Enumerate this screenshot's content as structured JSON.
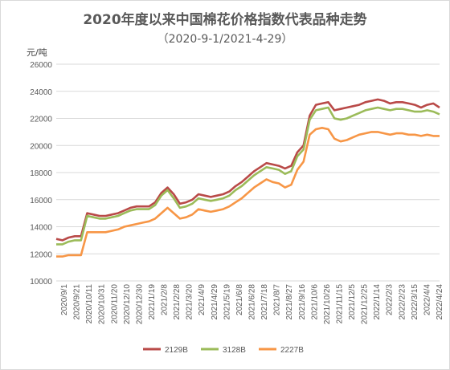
{
  "chart_data": {
    "type": "line",
    "title": "2020年度以来中国棉花价格指数代表品种走势",
    "subtitle": "（2020-9-1/2021-4-29）",
    "ylabel": "元/吨",
    "ylim": [
      10000,
      26000
    ],
    "yticks": [
      "10000",
      "12000",
      "14000",
      "16000",
      "18000",
      "20000",
      "22000",
      "24000",
      "26000"
    ],
    "xticks": [
      "2020/9/1",
      "2020/9/21",
      "2020/10/11",
      "2020/10/31",
      "2020/11/20",
      "2020/12/10",
      "2020/12/30",
      "2021/1/19",
      "2021/2/8",
      "2021/2/28",
      "2021/3/20",
      "2021/4/9",
      "2021/4/29",
      "2021/5/19",
      "2021/6/8",
      "2021/6/28",
      "2021/7/18",
      "2021/8/7",
      "2021/8/27",
      "2021/9/16",
      "2021/10/6",
      "2021/10/26",
      "2021/11/15",
      "2021/12/5",
      "2021/12/25",
      "2022/1/14",
      "2022/2/3",
      "2022/2/23",
      "2022/3/15",
      "2022/4/4",
      "2022/4/24"
    ],
    "x": [
      "2020/9/1",
      "2020/9/11",
      "2020/9/21",
      "2020/10/1",
      "2020/10/8",
      "2020/10/11",
      "2020/10/21",
      "2020/10/31",
      "2020/11/10",
      "2020/11/20",
      "2020/11/30",
      "2020/12/10",
      "2020/12/20",
      "2020/12/30",
      "2021/1/9",
      "2021/1/19",
      "2021/1/29",
      "2021/2/8",
      "2021/2/18",
      "2021/2/28",
      "2021/3/10",
      "2021/3/20",
      "2021/3/30",
      "2021/4/9",
      "2021/4/19",
      "2021/4/29",
      "2021/5/9",
      "2021/5/19",
      "2021/5/29",
      "2021/6/8",
      "2021/6/18",
      "2021/6/28",
      "2021/7/8",
      "2021/7/18",
      "2021/7/28",
      "2021/8/7",
      "2021/8/17",
      "2021/8/27",
      "2021/9/6",
      "2021/9/16",
      "2021/9/26",
      "2021/10/6",
      "2021/10/16",
      "2021/10/26",
      "2021/11/5",
      "2021/11/15",
      "2021/11/25",
      "2021/12/5",
      "2021/12/15",
      "2021/12/25",
      "2022/1/4",
      "2022/1/14",
      "2022/1/24",
      "2022/2/3",
      "2022/2/13",
      "2022/2/23",
      "2022/3/5",
      "2022/3/15",
      "2022/3/25",
      "2022/4/4",
      "2022/4/14",
      "2022/4/24",
      "2022/4/29"
    ],
    "series": [
      {
        "name": "2129B",
        "color": "#b94a48",
        "values": [
          13100,
          13000,
          13200,
          13300,
          13300,
          15000,
          14900,
          14800,
          14800,
          14900,
          15000,
          15200,
          15400,
          15500,
          15500,
          15500,
          15800,
          16500,
          16900,
          16400,
          15700,
          15800,
          16000,
          16400,
          16300,
          16200,
          16300,
          16400,
          16600,
          17000,
          17300,
          17700,
          18100,
          18400,
          18700,
          18600,
          18500,
          18300,
          18500,
          19500,
          20000,
          22200,
          23000,
          23100,
          23200,
          22600,
          22700,
          22800,
          22900,
          23000,
          23200,
          23300,
          23400,
          23300,
          23100,
          23200,
          23200,
          23100,
          23000,
          22800,
          23000,
          23100,
          22800
        ]
      },
      {
        "name": "3128B",
        "color": "#9bbb59",
        "values": [
          12700,
          12700,
          12900,
          13000,
          13000,
          14800,
          14700,
          14600,
          14600,
          14700,
          14800,
          15000,
          15200,
          15300,
          15300,
          15300,
          15600,
          16300,
          16700,
          16100,
          15400,
          15500,
          15700,
          16100,
          16000,
          15900,
          16000,
          16100,
          16300,
          16700,
          17000,
          17400,
          17800,
          18100,
          18400,
          18300,
          18200,
          17900,
          18100,
          19200,
          19700,
          21900,
          22600,
          22700,
          22800,
          22000,
          21900,
          22000,
          22200,
          22400,
          22600,
          22700,
          22800,
          22700,
          22600,
          22700,
          22700,
          22600,
          22500,
          22500,
          22600,
          22500,
          22300
        ]
      },
      {
        "name": "2227B",
        "color": "#f79646",
        "values": [
          11800,
          11800,
          11900,
          11900,
          11900,
          13600,
          13600,
          13600,
          13600,
          13700,
          13800,
          14000,
          14100,
          14200,
          14300,
          14400,
          14600,
          15000,
          15400,
          15000,
          14600,
          14700,
          14900,
          15300,
          15200,
          15100,
          15200,
          15300,
          15500,
          15800,
          16100,
          16500,
          16900,
          17200,
          17500,
          17300,
          17200,
          16900,
          17100,
          18200,
          18800,
          20800,
          21200,
          21300,
          21200,
          20500,
          20300,
          20400,
          20600,
          20800,
          20900,
          21000,
          21000,
          20900,
          20800,
          20900,
          20900,
          20800,
          20800,
          20700,
          20800,
          20700,
          20700
        ]
      }
    ],
    "grid": true,
    "legend": "bottom"
  }
}
